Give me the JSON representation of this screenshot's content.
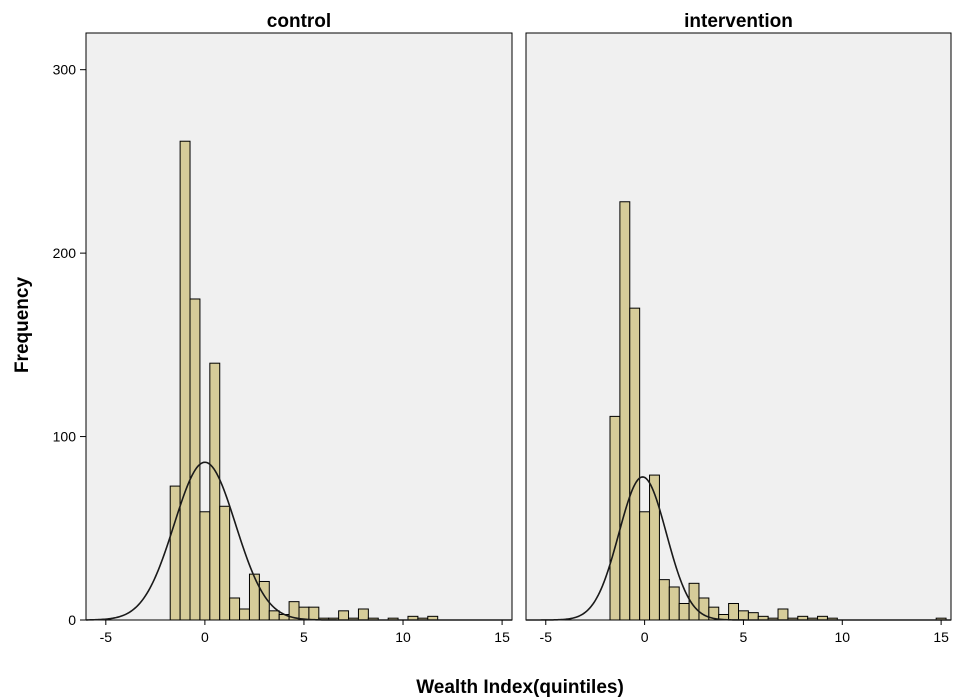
{
  "chart_data": {
    "type": "bar",
    "subtype": "histogram-with-normal-curve",
    "xlabel": "Wealth Index(quintiles)",
    "ylabel": "Frequency",
    "xlim": [
      -6,
      15.5
    ],
    "ylim": [
      0,
      320
    ],
    "xticks": [
      -5,
      0,
      5,
      10,
      15
    ],
    "yticks": [
      0,
      100,
      200,
      300
    ],
    "bin_width": 0.5,
    "bar_color": "#d6cc99",
    "background_color": "#f0f0f0",
    "curve_color": "#1a1a1a",
    "grid": false,
    "panels": [
      {
        "title": "control",
        "normal_curve": {
          "mean": 0,
          "sd": 1.55,
          "peak": 86
        },
        "bins": [
          {
            "x0": -1.75,
            "value": 73
          },
          {
            "x0": -1.25,
            "value": 261
          },
          {
            "x0": -0.75,
            "value": 175
          },
          {
            "x0": -0.25,
            "value": 59
          },
          {
            "x0": 0.25,
            "value": 140
          },
          {
            "x0": 0.75,
            "value": 62
          },
          {
            "x0": 1.25,
            "value": 12
          },
          {
            "x0": 1.75,
            "value": 6
          },
          {
            "x0": 2.25,
            "value": 25
          },
          {
            "x0": 2.75,
            "value": 21
          },
          {
            "x0": 3.25,
            "value": 5
          },
          {
            "x0": 3.75,
            "value": 3
          },
          {
            "x0": 4.25,
            "value": 10
          },
          {
            "x0": 4.75,
            "value": 7
          },
          {
            "x0": 5.25,
            "value": 7
          },
          {
            "x0": 5.75,
            "value": 1
          },
          {
            "x0": 6.25,
            "value": 1
          },
          {
            "x0": 6.75,
            "value": 5
          },
          {
            "x0": 7.25,
            "value": 1
          },
          {
            "x0": 7.75,
            "value": 6
          },
          {
            "x0": 8.25,
            "value": 1
          },
          {
            "x0": 9.25,
            "value": 1
          },
          {
            "x0": 10.25,
            "value": 2
          },
          {
            "x0": 10.75,
            "value": 1
          },
          {
            "x0": 11.25,
            "value": 2
          }
        ]
      },
      {
        "title": "intervention",
        "normal_curve": {
          "mean": -0.1,
          "sd": 1.2,
          "peak": 78
        },
        "bins": [
          {
            "x0": -1.75,
            "value": 111
          },
          {
            "x0": -1.25,
            "value": 228
          },
          {
            "x0": -0.75,
            "value": 170
          },
          {
            "x0": -0.25,
            "value": 59
          },
          {
            "x0": 0.25,
            "value": 79
          },
          {
            "x0": 0.75,
            "value": 22
          },
          {
            "x0": 1.25,
            "value": 18
          },
          {
            "x0": 1.75,
            "value": 9
          },
          {
            "x0": 2.25,
            "value": 20
          },
          {
            "x0": 2.75,
            "value": 12
          },
          {
            "x0": 3.25,
            "value": 7
          },
          {
            "x0": 3.75,
            "value": 3
          },
          {
            "x0": 4.25,
            "value": 9
          },
          {
            "x0": 4.75,
            "value": 5
          },
          {
            "x0": 5.25,
            "value": 4
          },
          {
            "x0": 5.75,
            "value": 2
          },
          {
            "x0": 6.25,
            "value": 1
          },
          {
            "x0": 6.75,
            "value": 6
          },
          {
            "x0": 7.25,
            "value": 1
          },
          {
            "x0": 7.75,
            "value": 2
          },
          {
            "x0": 8.25,
            "value": 1
          },
          {
            "x0": 8.75,
            "value": 2
          },
          {
            "x0": 9.25,
            "value": 1
          },
          {
            "x0": 14.75,
            "value": 1
          }
        ]
      }
    ]
  }
}
